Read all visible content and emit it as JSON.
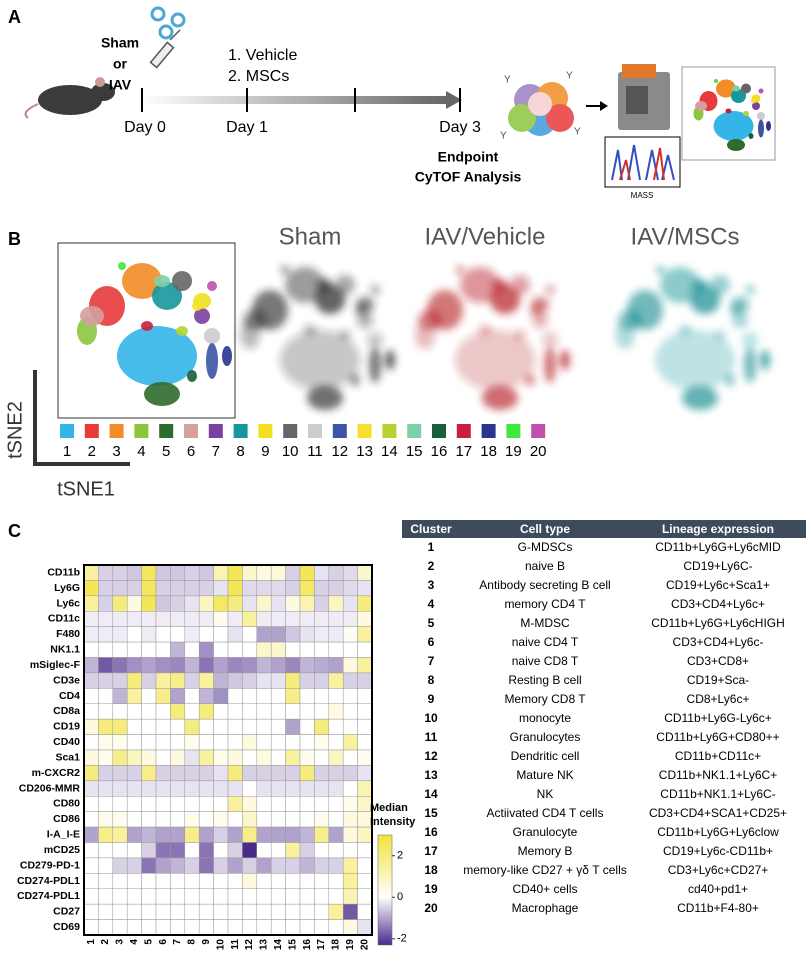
{
  "panel_a": {
    "label": "A",
    "treatment": [
      "Sham",
      "or",
      "IAV"
    ],
    "days": [
      "Day 0",
      "Day 1",
      "Day 3"
    ],
    "treatments": [
      "1. Vehicle",
      "2. MSCs"
    ],
    "endpoint": [
      "Endpoint",
      "CyTOF Analysis"
    ],
    "mass_label": "MASS"
  },
  "panel_b": {
    "label": "B",
    "conditions": [
      "Sham",
      "IAV/Vehicle",
      "IAV/MSCs"
    ],
    "x_axis": "tSNE1",
    "y_axis": "tSNE2",
    "clusters": [
      {
        "name": "1",
        "color": "#33b5e8"
      },
      {
        "name": "2",
        "color": "#e83a3a"
      },
      {
        "name": "3",
        "color": "#f28c28"
      },
      {
        "name": "4",
        "color": "#8cc63f"
      },
      {
        "name": "5",
        "color": "#2e6b2e"
      },
      {
        "name": "6",
        "color": "#d4a0a0"
      },
      {
        "name": "7",
        "color": "#7b3fa0"
      },
      {
        "name": "8",
        "color": "#16979b"
      },
      {
        "name": "9",
        "color": "#f0e020"
      },
      {
        "name": "10",
        "color": "#666666"
      },
      {
        "name": "11",
        "color": "#cccccc"
      },
      {
        "name": "12",
        "color": "#3c55a5"
      },
      {
        "name": "13",
        "color": "#f5e030"
      },
      {
        "name": "14",
        "color": "#b5d334"
      },
      {
        "name": "15",
        "color": "#7dcfa8"
      },
      {
        "name": "16",
        "color": "#1b5e3a"
      },
      {
        "name": "17",
        "color": "#c8203c"
      },
      {
        "name": "18",
        "color": "#2a3590"
      },
      {
        "name": "19",
        "color": "#3ee83e"
      },
      {
        "name": "20",
        "color": "#c050b0"
      }
    ]
  },
  "panel_c_label": "C",
  "chart_data": {
    "type": "heatmap",
    "x": [
      "1",
      "2",
      "3",
      "4",
      "5",
      "6",
      "7",
      "8",
      "9",
      "10",
      "11",
      "12",
      "13",
      "14",
      "15",
      "16",
      "17",
      "18",
      "19",
      "20"
    ],
    "y": [
      "CD11b",
      "Ly6G",
      "Ly6c",
      "CD11c",
      "F480",
      "NK1.1",
      "mSiglec-F",
      "CD3e",
      "CD4",
      "CD8a",
      "CD19",
      "CD40",
      "Sca1",
      "m-CXCR2",
      "CD206-MMR",
      "CD80",
      "CD86",
      "I-A_I-E",
      "mCD25",
      "CD279-PD-1",
      "CD274-PDL1",
      "CD274-PDL1",
      "CD27",
      "CD69"
    ],
    "values": [
      [
        1.5,
        -0.5,
        -0.5,
        -0.6,
        2.5,
        -0.6,
        -0.6,
        -0.5,
        -0.6,
        1.2,
        2.6,
        0.8,
        0.5,
        0.6,
        -0.5,
        2.6,
        -0.3,
        -0.5,
        -0.4,
        0.8
      ],
      [
        2.6,
        -0.5,
        -0.5,
        -0.5,
        2.5,
        -0.5,
        -0.5,
        -0.5,
        -0.5,
        -0.3,
        2.6,
        -0.4,
        -0.4,
        -0.4,
        -0.5,
        2.4,
        -0.5,
        -0.5,
        -0.4,
        -0.3
      ],
      [
        1.5,
        -0.5,
        2,
        0.5,
        2.6,
        -0.6,
        -0.5,
        -0.3,
        1,
        2.4,
        2,
        -0.3,
        0.8,
        -0.3,
        0.5,
        1.2,
        -0.5,
        1,
        -0.3,
        2
      ],
      [
        -0.2,
        -0.2,
        -0.2,
        -0.2,
        -0.2,
        -0.2,
        -0.2,
        -0.2,
        -0.2,
        0.3,
        -0.2,
        1.5,
        -0.2,
        -0.2,
        -0.2,
        -0.2,
        -0.2,
        -0.2,
        -0.2,
        0.5
      ],
      [
        -0.2,
        -0.2,
        -0.2,
        0,
        -0.2,
        0,
        0,
        -0.2,
        0,
        0,
        -0.3,
        0,
        -1,
        -1,
        -0.6,
        -0.3,
        -0.2,
        -0.2,
        0.2,
        1.5
      ],
      [
        0,
        0,
        0,
        0,
        0,
        0,
        -0.8,
        0,
        -1.2,
        0,
        0,
        0,
        0.8,
        0.8,
        0,
        0,
        0,
        0,
        0,
        0
      ],
      [
        -0.8,
        -1.8,
        -1.5,
        -1.2,
        -1,
        -1.2,
        -1.3,
        -0.8,
        -1.5,
        -1,
        -1.3,
        -1.2,
        -0.8,
        -1,
        -1.3,
        -0.8,
        -0.9,
        -1,
        0.5,
        1.5
      ],
      [
        -0.5,
        -0.5,
        -0.5,
        2,
        -0.5,
        1.5,
        1.8,
        -0.5,
        1.5,
        -0.8,
        -0.6,
        -0.5,
        -0.3,
        -0.3,
        2,
        -0.5,
        -0.5,
        1.5,
        -0.5,
        -0.5
      ],
      [
        0,
        0,
        -0.8,
        1.5,
        0,
        1.8,
        -1,
        0,
        -0.8,
        -1.2,
        0,
        0,
        0,
        0,
        1.8,
        0,
        0,
        0,
        0,
        0
      ],
      [
        0,
        0,
        0,
        0,
        0,
        0,
        2,
        0,
        2,
        0,
        0,
        0,
        0,
        0,
        0,
        0,
        0,
        0.5,
        0,
        0
      ],
      [
        0.5,
        2,
        2,
        0,
        0,
        0,
        0,
        2,
        0,
        0,
        0,
        0,
        0,
        0,
        -1,
        0,
        2,
        0,
        0,
        0
      ],
      [
        0,
        0.3,
        0.3,
        0,
        0,
        0,
        0,
        0.3,
        0,
        0,
        0,
        0.5,
        0,
        0,
        0,
        0,
        0.3,
        0,
        1.5,
        0
      ],
      [
        0.5,
        0.3,
        1.8,
        1,
        0.5,
        0,
        0.5,
        -0.3,
        1.5,
        0.3,
        0.5,
        0,
        0.5,
        0,
        1.5,
        0.3,
        0,
        1,
        0,
        0.3
      ],
      [
        2,
        -0.5,
        -0.5,
        -0.5,
        1.8,
        -0.5,
        -0.5,
        -0.5,
        -0.5,
        -0.3,
        2,
        -0.5,
        -0.5,
        -0.5,
        -0.5,
        2,
        -0.5,
        -0.5,
        -0.5,
        -0.3
      ],
      [
        -0.3,
        -0.3,
        -0.3,
        -0.3,
        -0.3,
        -0.3,
        -0.3,
        -0.3,
        -0.3,
        -0.3,
        -0.3,
        0,
        -0.3,
        -0.3,
        -0.3,
        -0.3,
        -0.3,
        -0.3,
        0,
        1.2
      ],
      [
        0,
        0,
        0,
        0,
        0,
        0,
        0,
        0,
        0,
        0,
        1.5,
        0.5,
        0,
        0,
        0,
        0,
        0,
        0,
        0.3,
        0.8
      ],
      [
        0,
        0.3,
        0.3,
        0,
        0,
        0,
        0,
        0.3,
        0,
        0.3,
        0,
        0.8,
        0,
        0,
        0,
        0,
        0.3,
        0,
        0.5,
        0.5
      ],
      [
        -1,
        1.8,
        1.5,
        -1,
        -0.8,
        -1,
        -1,
        1.8,
        -1,
        -0.5,
        -1,
        1.8,
        -1,
        -1,
        -1,
        -0.8,
        1.8,
        -1,
        0.5,
        1
      ],
      [
        0,
        0,
        0,
        0,
        -0.5,
        -1.5,
        -1.5,
        0,
        -1.5,
        0,
        -0.5,
        -2.5,
        0,
        0,
        1.5,
        -0.5,
        0,
        0,
        0,
        0
      ],
      [
        0,
        0,
        -0.5,
        -0.5,
        -1.5,
        -1,
        -0.8,
        -0.5,
        -1.5,
        -0.5,
        -1,
        -0.5,
        -1,
        -0.5,
        -0.5,
        -0.8,
        -0.5,
        -0.5,
        1.5,
        0
      ],
      [
        0,
        0,
        0,
        0,
        0,
        0,
        0,
        0,
        0,
        0,
        0,
        0.5,
        0,
        0,
        0,
        0,
        0,
        0,
        1.5,
        0
      ],
      [
        0,
        0,
        0,
        0,
        0,
        0,
        0,
        0,
        0,
        0,
        0,
        0,
        0,
        0,
        0,
        0,
        0,
        0,
        1.2,
        0
      ],
      [
        0,
        0,
        0,
        0,
        0,
        0,
        0,
        0,
        0,
        0,
        0,
        0,
        0,
        0,
        0,
        0,
        0,
        1.5,
        -1.8,
        0
      ],
      [
        0,
        0,
        0,
        0,
        0,
        0,
        0,
        0,
        0,
        0,
        0,
        0,
        0,
        0,
        0,
        0,
        0,
        0,
        0.5,
        -0.3
      ]
    ],
    "colorbar_title": [
      "Median",
      "Intensity"
    ],
    "zlim": [
      -2.3,
      3
    ],
    "zticks": [
      2,
      0,
      -2
    ],
    "colors": {
      "low": "#4b2a8c",
      "mid": "#ffffff",
      "high": "#f2e23c"
    }
  },
  "table": {
    "header": [
      "Cluster",
      "Cell type",
      "Lineage expression"
    ],
    "rows": [
      [
        "1",
        "G-MDSCs",
        "CD11b+Ly6G+Ly6cMID"
      ],
      [
        "2",
        "naive B",
        "CD19+Ly6C-"
      ],
      [
        "3",
        "Antibody secreting B cell",
        "CD19+Ly6c+Sca1+"
      ],
      [
        "4",
        "memory CD4 T",
        "CD3+CD4+Ly6c+"
      ],
      [
        "5",
        "M-MDSC",
        "CD11b+Ly6G+Ly6cHIGH"
      ],
      [
        "6",
        "naive CD4 T",
        "CD3+CD4+Ly6c-"
      ],
      [
        "7",
        "naive CD8 T",
        "CD3+CD8+"
      ],
      [
        "8",
        "Resting B cell",
        "CD19+Sca-"
      ],
      [
        "9",
        "Memory CD8 T",
        "CD8+Ly6c+"
      ],
      [
        "10",
        "monocyte",
        "CD11b+Ly6G-Ly6c+"
      ],
      [
        "11",
        "Granulocytes",
        "CD11b+Ly6G+CD80++"
      ],
      [
        "12",
        "Dendritic cell",
        "CD11b+CD11c+"
      ],
      [
        "13",
        "Mature NK",
        "CD11b+NK1.1+Ly6C+"
      ],
      [
        "14",
        "NK",
        "CD11b+NK1.1+Ly6C-"
      ],
      [
        "15",
        "Actiivated CD4 T cells",
        "CD3+CD4+SCA1+CD25+"
      ],
      [
        "16",
        "Granulocyte",
        "CD11b+Ly6G+Ly6clow"
      ],
      [
        "17",
        "Memory B",
        "CD19+Ly6c-CD11b+"
      ],
      [
        "18",
        "memory-like CD27 + γδ T cells",
        "CD3+Ly6c+CD27+"
      ],
      [
        "19",
        "CD40+ cells",
        "cd40+pd1+"
      ],
      [
        "20",
        "Macrophage",
        "CD11b+F4-80+"
      ]
    ]
  }
}
